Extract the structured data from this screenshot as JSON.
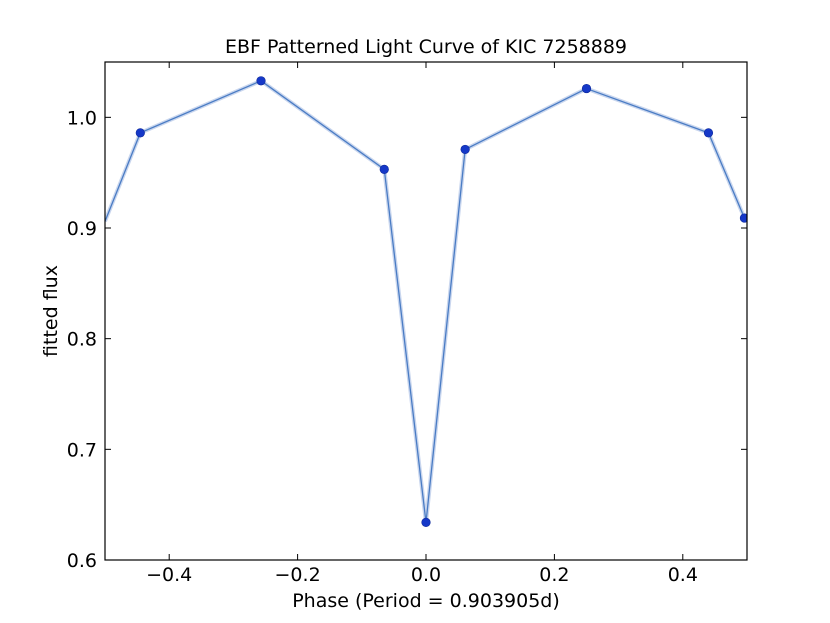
{
  "chart_data": {
    "type": "line",
    "title": "EBF Patterned Light Curve of KIC 7258889",
    "xlabel": "Phase (Period = 0.903905d)",
    "ylabel": "fitted flux",
    "xlim": [
      -0.5,
      0.5
    ],
    "ylim": [
      0.6,
      1.05
    ],
    "grid": false,
    "xticks": [
      -0.4,
      -0.2,
      0.0,
      0.2,
      0.4
    ],
    "xtick_labels": [
      "−0.4",
      "−0.2",
      "0.0",
      "0.2",
      "0.4"
    ],
    "yticks": [
      0.6,
      0.7,
      0.8,
      0.9,
      1.0
    ],
    "ytick_labels": [
      "0.6",
      "0.7",
      "0.8",
      "0.9",
      "1.0"
    ],
    "line_color": "#4a7cc4",
    "marker_color": "#1538c8",
    "series": [
      {
        "x": [
          -0.5,
          -0.445,
          -0.257,
          -0.065,
          0.0,
          0.061,
          0.25,
          0.44,
          0.496
        ],
        "y": [
          0.906,
          0.986,
          1.033,
          0.953,
          0.634,
          0.971,
          1.026,
          0.986,
          0.909
        ],
        "markers": [
          false,
          true,
          true,
          true,
          true,
          true,
          true,
          true,
          true
        ]
      }
    ]
  }
}
